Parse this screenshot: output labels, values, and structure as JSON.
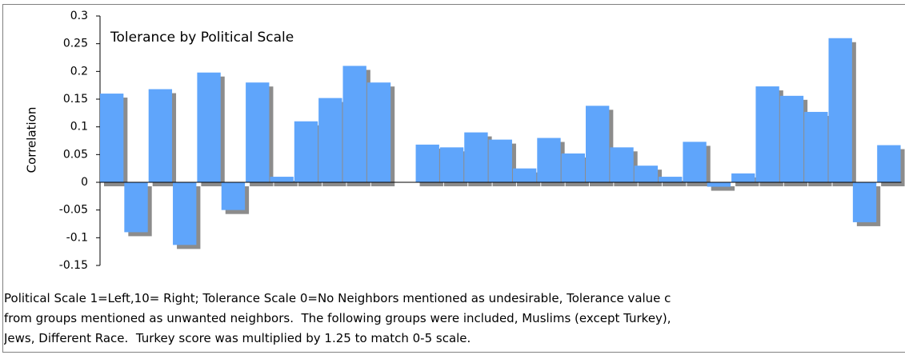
{
  "chart_data": {
    "type": "bar",
    "title": "Tolerance by Political Scale",
    "y_label": "Correlation",
    "categories": [
      null,
      null,
      null,
      null,
      null,
      null,
      null,
      null,
      null,
      null,
      null,
      null,
      null,
      null,
      null,
      null,
      null,
      null,
      null,
      null,
      null,
      null,
      null,
      null,
      null,
      null,
      null,
      null,
      null,
      null,
      null,
      null,
      null
    ],
    "values": [
      0.16,
      -0.09,
      0.168,
      -0.113,
      0.198,
      -0.05,
      0.18,
      0.01,
      0.11,
      0.152,
      0.21,
      0.18,
      null,
      0.068,
      0.063,
      0.09,
      0.077,
      0.025,
      0.08,
      0.052,
      0.138,
      0.063,
      0.03,
      0.01,
      0.073,
      -0.008,
      0.016,
      0.173,
      0.156,
      0.127,
      0.26,
      -0.072,
      0.067
    ],
    "color": "#5fa5fb",
    "shadow_color": "#8c8c8c",
    "ylim": [
      -0.15,
      0.3
    ],
    "yticks": [
      0.3,
      0.25,
      0.2,
      0.15,
      0.1,
      0.05,
      0,
      -0.05,
      -0.1,
      -0.15
    ],
    "notes": [
      "Political Scale 1=Left,10= Right; Tolerance Scale 0=No Neighbors mentioned as undesirable, Tolerance value c",
      "from groups mentioned as unwanted neighbors.  The following groups were included, Muslims (except Turkey),",
      "Jews, Different Race.  Turkey score was multiplied by 1.25 to match 0-5 scale."
    ]
  }
}
